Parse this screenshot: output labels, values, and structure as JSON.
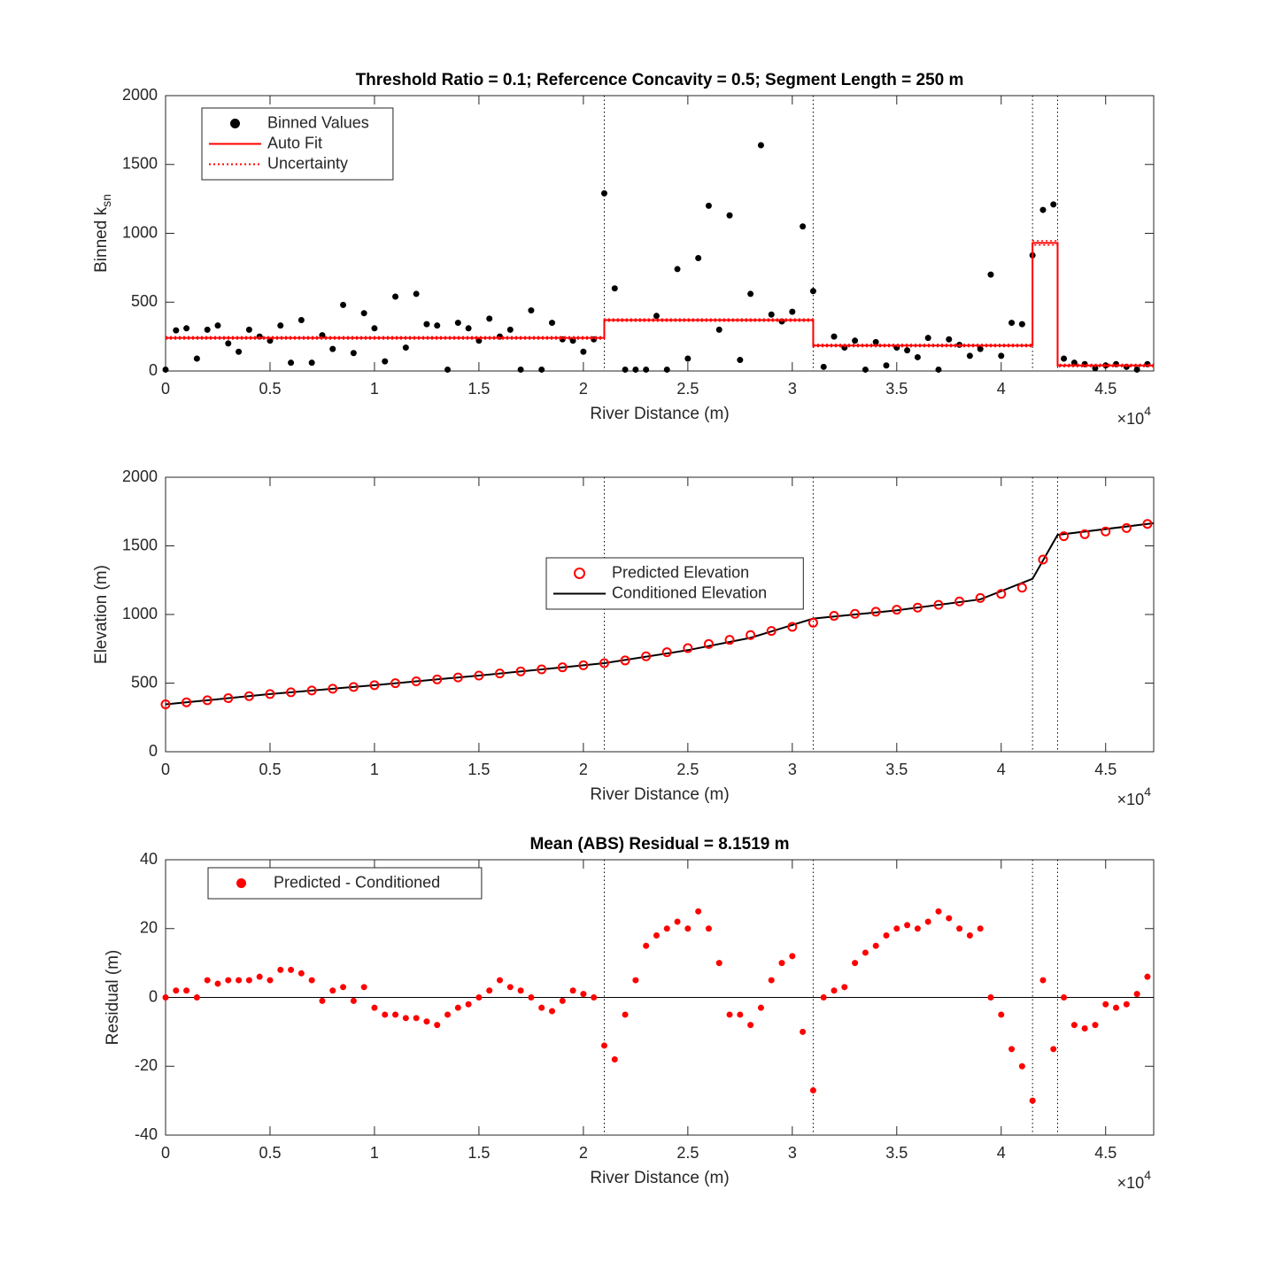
{
  "chart_data": [
    {
      "type": "scatter",
      "title": "Threshold Ratio = 0.1; Refercence Concavity = 0.5; Segment Length = 250 m",
      "xlabel": "River Distance (m)",
      "ylabel": "Binned k",
      "ylabel_sub": "sn",
      "x_multiplier": {
        "base": "×10",
        "exponent": "4"
      },
      "xlim": [
        0,
        47300
      ],
      "ylim": [
        0,
        2000
      ],
      "xticks": [
        0,
        {
          "value": 5000,
          "label": "0.5"
        },
        {
          "value": 10000,
          "label": "1"
        },
        {
          "value": 15000,
          "label": "1.5"
        },
        {
          "value": 20000,
          "label": "2"
        },
        {
          "value": 25000,
          "label": "2.5"
        },
        {
          "value": 30000,
          "label": "3"
        },
        {
          "value": 35000,
          "label": "3.5"
        },
        {
          "value": 40000,
          "label": "4"
        },
        {
          "value": 45000,
          "label": "4.5"
        }
      ],
      "yticks": [
        0,
        500,
        1000,
        1500,
        2000
      ],
      "breaks": [
        21000,
        31000,
        41500,
        42700
      ],
      "legend": "upper left",
      "series": [
        {
          "name": "Binned Values",
          "kind": "dots",
          "color": "#000000",
          "x": [
            0,
            500,
            1000,
            1500,
            2000,
            2500,
            3000,
            3500,
            4000,
            4500,
            5000,
            5500,
            6000,
            6500,
            7000,
            7500,
            8000,
            8500,
            9000,
            9500,
            10000,
            10500,
            11000,
            11500,
            12000,
            12500,
            13000,
            13500,
            14000,
            14500,
            15000,
            15500,
            16000,
            16500,
            17000,
            17500,
            18000,
            18500,
            19000,
            19500,
            20000,
            20500,
            21000,
            21500,
            22000,
            22500,
            23000,
            23500,
            24000,
            24500,
            25000,
            25500,
            26000,
            26500,
            27000,
            27500,
            28000,
            28500,
            29000,
            29500,
            30000,
            30500,
            31000,
            31500,
            32000,
            32500,
            33000,
            33500,
            34000,
            34500,
            35000,
            35500,
            36000,
            36500,
            37000,
            37500,
            38000,
            38500,
            39000,
            39500,
            40000,
            40500,
            41000,
            41500,
            42000,
            42500,
            43000,
            43500,
            44000,
            44500,
            45000,
            45500,
            46000,
            46500,
            47000
          ],
          "values": [
            10,
            295,
            310,
            90,
            300,
            330,
            200,
            140,
            300,
            250,
            220,
            330,
            60,
            370,
            60,
            260,
            160,
            480,
            130,
            420,
            310,
            70,
            540,
            170,
            560,
            340,
            330,
            10,
            350,
            310,
            220,
            380,
            250,
            300,
            10,
            440,
            10,
            350,
            230,
            220,
            140,
            230,
            1290,
            600,
            10,
            10,
            10,
            400,
            10,
            740,
            90,
            820,
            1200,
            300,
            1130,
            80,
            560,
            1640,
            410,
            360,
            430,
            1050,
            580,
            30,
            250,
            170,
            220,
            10,
            210,
            40,
            170,
            150,
            100,
            240,
            10,
            230,
            190,
            110,
            160,
            700,
            110,
            350,
            340,
            840,
            1170,
            1210,
            90,
            60,
            50,
            20,
            40,
            50,
            30,
            10,
            50
          ]
        },
        {
          "name": "Auto Fit",
          "kind": "line",
          "color": "#ff0000",
          "x": [
            0,
            21000,
            21000,
            31000,
            31000,
            41500,
            41500,
            42700,
            42700,
            47300
          ],
          "values": [
            240,
            240,
            370,
            370,
            185,
            185,
            930,
            930,
            40,
            40
          ]
        },
        {
          "name": "Uncertainty",
          "kind": "band",
          "color": "#ff0000",
          "x": [
            0,
            21000,
            21000,
            31000,
            31000,
            41500,
            41500,
            42700,
            42700,
            47300
          ],
          "values": [
            248,
            248,
            378,
            378,
            193,
            193,
            945,
            945,
            48,
            48
          ],
          "values_lower": [
            232,
            232,
            362,
            362,
            177,
            177,
            915,
            915,
            32,
            32
          ]
        }
      ]
    },
    {
      "type": "line",
      "xlabel": "River Distance (m)",
      "ylabel": "Elevation (m)",
      "x_multiplier": {
        "base": "×10",
        "exponent": "4"
      },
      "xlim": [
        0,
        47300
      ],
      "ylim": [
        0,
        2000
      ],
      "xticks": [
        0,
        {
          "value": 5000,
          "label": "0.5"
        },
        {
          "value": 10000,
          "label": "1"
        },
        {
          "value": 15000,
          "label": "1.5"
        },
        {
          "value": 20000,
          "label": "2"
        },
        {
          "value": 25000,
          "label": "2.5"
        },
        {
          "value": 30000,
          "label": "3"
        },
        {
          "value": 35000,
          "label": "3.5"
        },
        {
          "value": 40000,
          "label": "4"
        },
        {
          "value": 45000,
          "label": "4.5"
        }
      ],
      "yticks": [
        0,
        500,
        1000,
        1500,
        2000
      ],
      "breaks": [
        21000,
        31000,
        41500,
        42700
      ],
      "legend": "center",
      "series": [
        {
          "name": "Predicted Elevation",
          "kind": "circles",
          "color": "#ff0000",
          "x": [
            0,
            1000,
            2000,
            3000,
            4000,
            5000,
            6000,
            7000,
            8000,
            9000,
            10000,
            11000,
            12000,
            13000,
            14000,
            15000,
            16000,
            17000,
            18000,
            19000,
            20000,
            21000,
            22000,
            23000,
            24000,
            25000,
            26000,
            27000,
            28000,
            29000,
            30000,
            31000,
            32000,
            33000,
            34000,
            35000,
            36000,
            37000,
            38000,
            39000,
            40000,
            41000,
            42000,
            43000,
            44000,
            45000,
            46000,
            47000
          ],
          "values": [
            345,
            360,
            375,
            390,
            405,
            420,
            433,
            446,
            459,
            472,
            485,
            499,
            513,
            527,
            541,
            555,
            570,
            585,
            600,
            615,
            630,
            645,
            665,
            695,
            725,
            755,
            785,
            815,
            850,
            880,
            910,
            940,
            990,
            1005,
            1020,
            1035,
            1050,
            1070,
            1095,
            1120,
            1150,
            1195,
            1400,
            1570,
            1585,
            1605,
            1630,
            1660
          ]
        },
        {
          "name": "Conditioned Elevation",
          "kind": "line",
          "color": "#000000",
          "x": [
            0,
            5000,
            10000,
            15000,
            20000,
            21000,
            25000,
            28000,
            31000,
            35000,
            39000,
            41500,
            42700,
            47300
          ],
          "values": [
            345,
            420,
            485,
            555,
            630,
            645,
            740,
            830,
            970,
            1030,
            1110,
            1260,
            1580,
            1665
          ]
        }
      ]
    },
    {
      "type": "scatter",
      "title": "Mean (ABS) Residual = 8.1519 m",
      "xlabel": "River Distance (m)",
      "ylabel": "Residual (m)",
      "x_multiplier": {
        "base": "×10",
        "exponent": "4"
      },
      "xlim": [
        0,
        47300
      ],
      "ylim": [
        -40,
        40
      ],
      "xticks": [
        0,
        {
          "value": 5000,
          "label": "0.5"
        },
        {
          "value": 10000,
          "label": "1"
        },
        {
          "value": 15000,
          "label": "1.5"
        },
        {
          "value": 20000,
          "label": "2"
        },
        {
          "value": 25000,
          "label": "2.5"
        },
        {
          "value": 30000,
          "label": "3"
        },
        {
          "value": 35000,
          "label": "3.5"
        },
        {
          "value": 40000,
          "label": "4"
        },
        {
          "value": 45000,
          "label": "4.5"
        }
      ],
      "yticks": [
        -40,
        -20,
        0,
        20,
        40
      ],
      "breaks": [
        21000,
        31000,
        41500,
        42700
      ],
      "ref_line": 0,
      "legend": "upper left",
      "series": [
        {
          "name": "Predicted - Conditioned",
          "kind": "dots",
          "color": "#ff0000",
          "x": [
            0,
            500,
            1000,
            1500,
            2000,
            2500,
            3000,
            3500,
            4000,
            4500,
            5000,
            5500,
            6000,
            6500,
            7000,
            7500,
            8000,
            8500,
            9000,
            9500,
            10000,
            10500,
            11000,
            11500,
            12000,
            12500,
            13000,
            13500,
            14000,
            14500,
            15000,
            15500,
            16000,
            16500,
            17000,
            17500,
            18000,
            18500,
            19000,
            19500,
            20000,
            20500,
            21000,
            21500,
            22000,
            22500,
            23000,
            23500,
            24000,
            24500,
            25000,
            25500,
            26000,
            26500,
            27000,
            27500,
            28000,
            28500,
            29000,
            29500,
            30000,
            30500,
            31000,
            31500,
            32000,
            32500,
            33000,
            33500,
            34000,
            34500,
            35000,
            35500,
            36000,
            36500,
            37000,
            37500,
            38000,
            38500,
            39000,
            39500,
            40000,
            40500,
            41000,
            41500,
            42000,
            42500,
            43000,
            43500,
            44000,
            44500,
            45000,
            45500,
            46000,
            46500,
            47000
          ],
          "values": [
            0,
            2,
            2,
            0,
            5,
            4,
            5,
            5,
            5,
            6,
            5,
            8,
            8,
            7,
            5,
            -1,
            2,
            3,
            -1,
            3,
            -3,
            -5,
            -5,
            -6,
            -6,
            -7,
            -8,
            -5,
            -3,
            -2,
            0,
            2,
            5,
            3,
            2,
            0,
            -3,
            -4,
            -1,
            2,
            1,
            0,
            -14,
            -18,
            -5,
            5,
            15,
            18,
            20,
            22,
            20,
            25,
            20,
            10,
            -5,
            -5,
            -8,
            -3,
            5,
            10,
            12,
            -10,
            -27,
            0,
            2,
            3,
            10,
            13,
            15,
            18,
            20,
            21,
            20,
            22,
            25,
            23,
            20,
            18,
            20,
            0,
            -5,
            -15,
            -20,
            -30,
            5,
            -15,
            0,
            -8,
            -9,
            -8,
            -2,
            -3,
            -2,
            1,
            6
          ]
        }
      ]
    }
  ]
}
